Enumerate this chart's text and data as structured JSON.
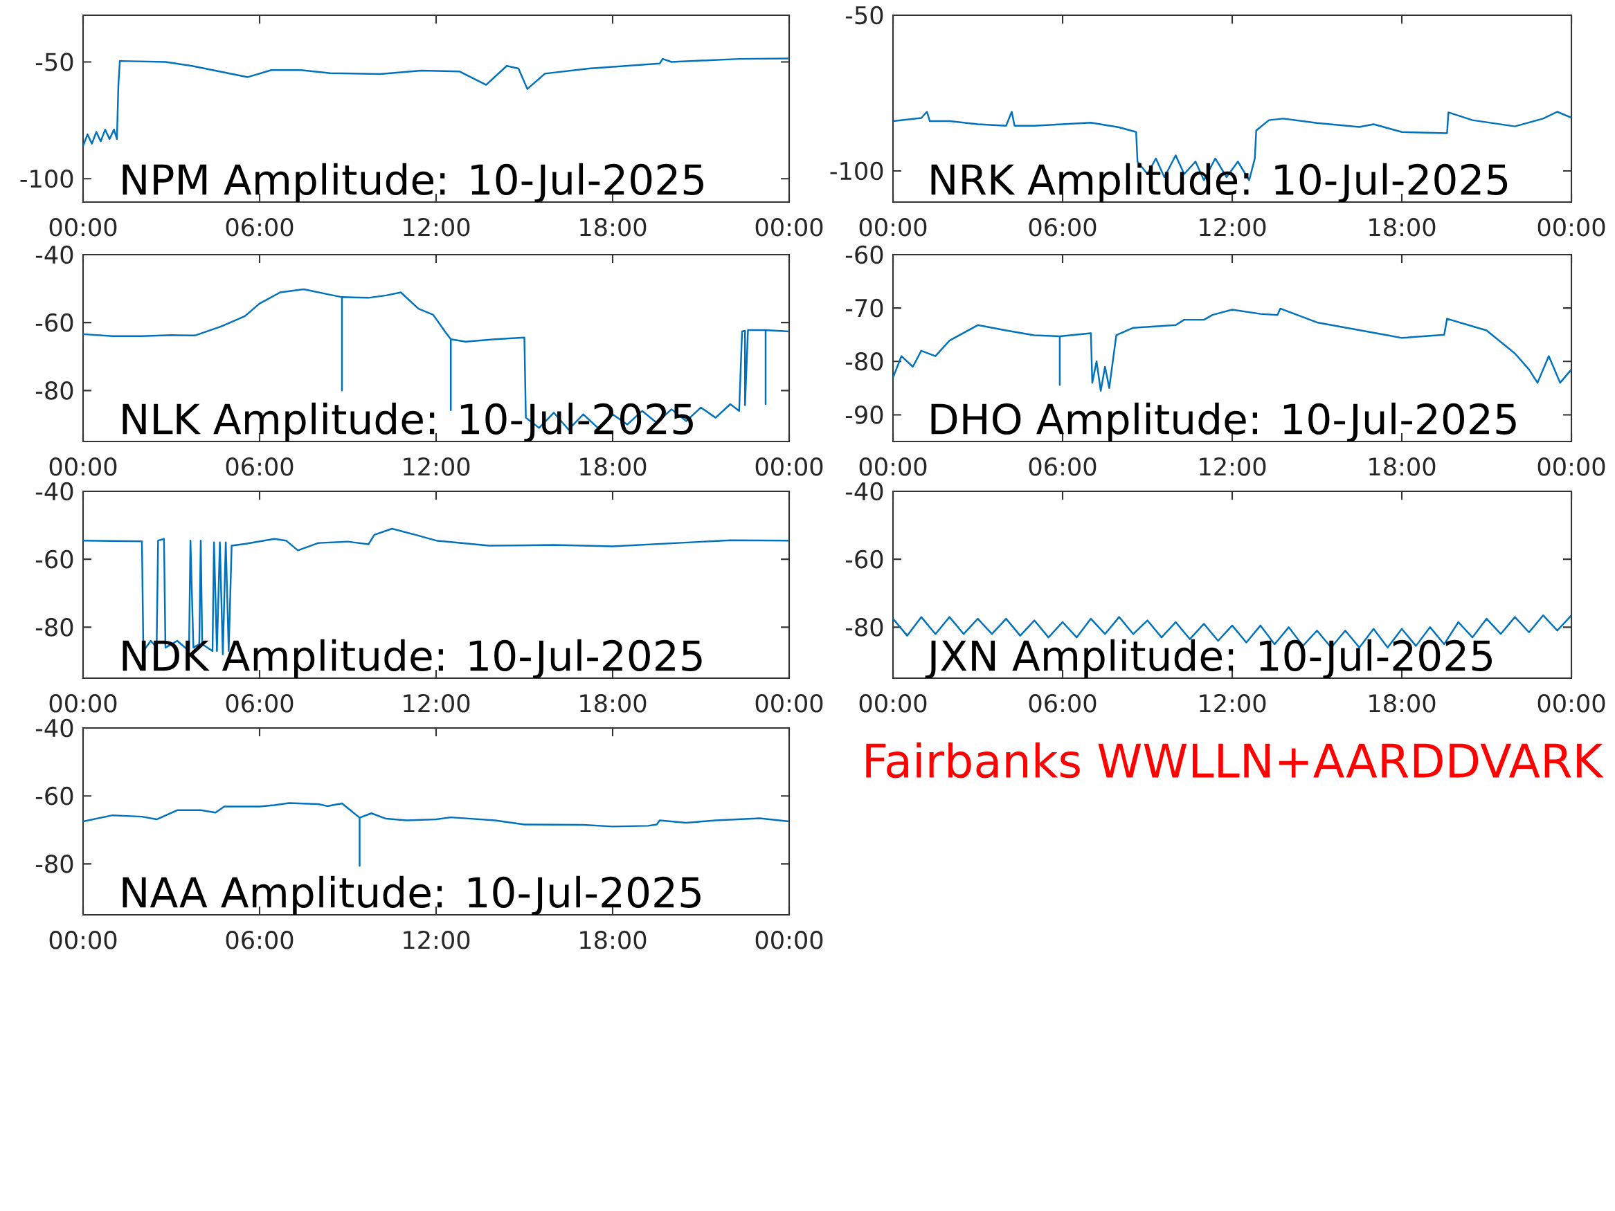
{
  "chart_data": [
    {
      "type": "line",
      "title": "NPM Amplitude: 10-Jul-2025",
      "color": "#0072bd",
      "xlim": [
        0,
        24
      ],
      "ylim": [
        -110,
        -30
      ],
      "yticks": [
        -50,
        -100
      ],
      "xticks": [
        {
          "value": 0,
          "label": "00:00"
        },
        {
          "value": 6,
          "label": "06:00"
        },
        {
          "value": 12,
          "label": "12:00"
        },
        {
          "value": 18,
          "label": "18:00"
        },
        {
          "value": 24,
          "label": "00:00"
        }
      ],
      "x": [
        0,
        0.15,
        0.3,
        0.45,
        0.6,
        0.75,
        0.9,
        1.05,
        1.15,
        1.2,
        1.25,
        2.8,
        3.7,
        5.6,
        6.4,
        7.4,
        8.4,
        10.1,
        11.5,
        12.8,
        13.7,
        14.4,
        14.8,
        15.1,
        15.7,
        17.2,
        19.6,
        19.7,
        20.0,
        22.3,
        24
      ],
      "values": [
        -86,
        -81,
        -85,
        -80,
        -84,
        -79,
        -83,
        -79,
        -83,
        -60,
        -49.6,
        -50,
        -51.7,
        -56.5,
        -53.5,
        -53.5,
        -54.8,
        -55.2,
        -53.7,
        -54.1,
        -59.8,
        -51.7,
        -52.8,
        -61.6,
        -55,
        -52.8,
        -50.7,
        -48.7,
        -50,
        -48.7,
        -48.5
      ]
    },
    {
      "type": "line",
      "title": "NRK Amplitude: 10-Jul-2025",
      "color": "#0072bd",
      "xlim": [
        0,
        24
      ],
      "ylim": [
        -110,
        -50
      ],
      "yticks": [
        -50,
        -100
      ],
      "xticks": [
        {
          "value": 0,
          "label": "00:00"
        },
        {
          "value": 6,
          "label": "06:00"
        },
        {
          "value": 12,
          "label": "12:00"
        },
        {
          "value": 18,
          "label": "18:00"
        },
        {
          "value": 24,
          "label": "00:00"
        }
      ],
      "x": [
        0,
        1,
        1.2,
        1.3,
        2,
        3,
        4,
        4.2,
        4.3,
        5,
        6,
        7,
        8,
        8.6,
        8.65,
        9,
        9.3,
        9.6,
        10,
        10.3,
        10.7,
        11,
        11.4,
        11.8,
        12.2,
        12.6,
        12.8,
        12.85,
        13.3,
        13.8,
        15,
        16.5,
        17,
        18,
        19.6,
        19.65,
        20.5,
        22,
        23,
        23.5,
        24
      ],
      "values": [
        -84,
        -83,
        -81,
        -84,
        -84,
        -85,
        -85.5,
        -81,
        -85.5,
        -85.5,
        -85,
        -84.5,
        -86,
        -87.5,
        -97,
        -101,
        -96,
        -102,
        -95,
        -101,
        -97,
        -103,
        -96,
        -102,
        -97,
        -103,
        -96,
        -87,
        -83.7,
        -83.2,
        -84.6,
        -85.9,
        -85,
        -87.5,
        -87.9,
        -81.2,
        -83.7,
        -85.7,
        -83.2,
        -81,
        -82.9
      ]
    },
    {
      "type": "line",
      "title": "NLK Amplitude: 10-Jul-2025",
      "color": "#0072bd",
      "xlim": [
        0,
        24
      ],
      "ylim": [
        -95,
        -40
      ],
      "yticks": [
        -40,
        -60,
        -80
      ],
      "xticks": [
        {
          "value": 0,
          "label": "00:00"
        },
        {
          "value": 6,
          "label": "06:00"
        },
        {
          "value": 12,
          "label": "12:00"
        },
        {
          "value": 18,
          "label": "18:00"
        },
        {
          "value": 24,
          "label": "00:00"
        }
      ],
      "x": [
        0,
        1,
        2,
        3,
        3.8,
        4.7,
        5.5,
        6,
        6.7,
        7.5,
        8.5,
        8.8,
        8.8,
        8.8,
        9.7,
        10.3,
        10.8,
        11.4,
        11.9,
        12.3,
        12.5,
        12.5,
        12.5,
        13,
        14,
        15,
        15.05,
        15.5,
        16,
        16.5,
        17,
        17.5,
        18,
        18.5,
        19,
        19.5,
        20,
        20.5,
        21,
        21.5,
        22,
        22.3,
        22.4,
        22.5,
        22.5,
        22.6,
        23.2,
        23.2,
        23.2,
        24
      ],
      "values": [
        -63.4,
        -64,
        -64,
        -63.7,
        -63.8,
        -61.1,
        -58.1,
        -54.4,
        -51.1,
        -50.2,
        -52,
        -52.5,
        -80,
        -52.5,
        -52.7,
        -52,
        -51.1,
        -55.9,
        -57.7,
        -62.6,
        -64.9,
        -85.8,
        -64.9,
        -65.6,
        -64.9,
        -64.4,
        -88,
        -91,
        -86.5,
        -91.5,
        -87,
        -91,
        -87,
        -90,
        -86,
        -89.5,
        -85.5,
        -89,
        -85,
        -88,
        -84,
        -86,
        -62.6,
        -62.4,
        -84.3,
        -62.2,
        -62.2,
        -84,
        -62.2,
        -62.6
      ]
    },
    {
      "type": "line",
      "title": "DHO Amplitude: 10-Jul-2025",
      "color": "#0072bd",
      "xlim": [
        0,
        24
      ],
      "ylim": [
        -95,
        -60
      ],
      "yticks": [
        -60,
        -70,
        -80,
        -90
      ],
      "xticks": [
        {
          "value": 0,
          "label": "00:00"
        },
        {
          "value": 6,
          "label": "06:00"
        },
        {
          "value": 12,
          "label": "12:00"
        },
        {
          "value": 18,
          "label": "18:00"
        },
        {
          "value": 24,
          "label": "00:00"
        }
      ],
      "x": [
        0,
        0.3,
        0.7,
        1,
        1.5,
        2,
        3,
        4,
        5,
        5.9,
        5.9,
        5.9,
        7,
        7.05,
        7.2,
        7.35,
        7.5,
        7.65,
        7.75,
        7.9,
        8.5,
        10,
        10.3,
        11,
        11.3,
        12,
        13,
        13.6,
        13.7,
        15,
        17.5,
        18,
        19.5,
        19.6,
        21,
        22,
        22.5,
        22.8,
        23.2,
        23.6,
        24
      ],
      "values": [
        -83,
        -79,
        -81,
        -78,
        -79,
        -76.1,
        -73.2,
        -74.2,
        -75.1,
        -75.3,
        -84.4,
        -75.3,
        -74.7,
        -84,
        -80,
        -85.5,
        -81,
        -85,
        -81,
        -75.1,
        -73.7,
        -73.2,
        -72.2,
        -72.2,
        -71.3,
        -70.3,
        -71.1,
        -71.3,
        -70.1,
        -72.7,
        -75.1,
        -75.6,
        -75,
        -72,
        -74.2,
        -78.5,
        -81.5,
        -84,
        -79,
        -84,
        -81.5
      ]
    },
    {
      "type": "line",
      "title": "NDK Amplitude: 10-Jul-2025",
      "color": "#0072bd",
      "xlim": [
        0,
        24
      ],
      "ylim": [
        -95,
        -40
      ],
      "yticks": [
        -40,
        -60,
        -80
      ],
      "xticks": [
        {
          "value": 0,
          "label": "00:00"
        },
        {
          "value": 6,
          "label": "06:00"
        },
        {
          "value": 12,
          "label": "12:00"
        },
        {
          "value": 18,
          "label": "18:00"
        },
        {
          "value": 24,
          "label": "00:00"
        }
      ],
      "x": [
        0,
        2,
        2.05,
        2.3,
        2.5,
        2.55,
        2.75,
        2.8,
        3.2,
        3.6,
        3.65,
        3.75,
        3.95,
        4.0,
        4.05,
        4.4,
        4.45,
        4.55,
        4.65,
        4.75,
        4.85,
        4.95,
        5.05,
        5.5,
        6.5,
        6.9,
        7.3,
        8,
        9,
        9.7,
        9.9,
        10.5,
        11.3,
        12,
        13.8,
        16,
        18,
        20,
        22,
        24
      ],
      "values": [
        -54.5,
        -54.7,
        -87,
        -84,
        -86,
        -54.5,
        -54,
        -86,
        -84,
        -87,
        -54.5,
        -86,
        -85,
        -54.5,
        -85,
        -87,
        -55,
        -87,
        -55,
        -88,
        -55,
        -87,
        -56,
        -55.5,
        -54,
        -54.5,
        -57.4,
        -55.2,
        -54.8,
        -55.6,
        -52.8,
        -51,
        -52.8,
        -54.5,
        -56,
        -55.8,
        -56.2,
        -55.3,
        -54.4,
        -54.5
      ]
    },
    {
      "type": "line",
      "title": "JXN Amplitude: 10-Jul-2025",
      "color": "#0072bd",
      "xlim": [
        0,
        24
      ],
      "ylim": [
        -95,
        -40
      ],
      "yticks": [
        -40,
        -60,
        -80
      ],
      "xticks": [
        {
          "value": 0,
          "label": "00:00"
        },
        {
          "value": 6,
          "label": "06:00"
        },
        {
          "value": 12,
          "label": "12:00"
        },
        {
          "value": 18,
          "label": "18:00"
        },
        {
          "value": 24,
          "label": "00:00"
        }
      ],
      "x": [
        0,
        0.5,
        1,
        1.5,
        2,
        2.5,
        3,
        3.5,
        4,
        4.5,
        5,
        5.5,
        6,
        6.5,
        7,
        7.5,
        8,
        8.5,
        9,
        9.5,
        10,
        10.5,
        11,
        11.5,
        12,
        12.5,
        13,
        13.5,
        14,
        14.5,
        15,
        15.5,
        16,
        16.5,
        17,
        17.5,
        18,
        18.5,
        19,
        19.5,
        20,
        20.5,
        21,
        21.5,
        22,
        22.5,
        23,
        23.5,
        24
      ],
      "values": [
        -77.5,
        -82.5,
        -77,
        -82,
        -77,
        -82,
        -77.5,
        -82,
        -77.5,
        -82.5,
        -78,
        -83,
        -78.5,
        -83,
        -77.5,
        -82,
        -77,
        -82,
        -78,
        -83,
        -78.5,
        -83.5,
        -79,
        -84,
        -79.5,
        -84.5,
        -79.5,
        -85,
        -80,
        -85.5,
        -81,
        -86,
        -81,
        -86,
        -80.5,
        -86,
        -80.5,
        -85.5,
        -80,
        -85,
        -78.5,
        -83,
        -77.5,
        -82,
        -77,
        -81.5,
        -76.5,
        -81,
        -76.5
      ]
    },
    {
      "type": "line",
      "title": "NAA Amplitude: 10-Jul-2025",
      "color": "#0072bd",
      "xlim": [
        0,
        24
      ],
      "ylim": [
        -95,
        -40
      ],
      "yticks": [
        -40,
        -60,
        -80
      ],
      "xticks": [
        {
          "value": 0,
          "label": "00:00"
        },
        {
          "value": 6,
          "label": "06:00"
        },
        {
          "value": 12,
          "label": "12:00"
        },
        {
          "value": 18,
          "label": "18:00"
        },
        {
          "value": 24,
          "label": "00:00"
        }
      ],
      "x": [
        0,
        1,
        2,
        2.5,
        3.2,
        4,
        4.5,
        4.8,
        6,
        6.5,
        7,
        8,
        8.3,
        8.8,
        9.4,
        9.4,
        9.4,
        9.8,
        10.3,
        11,
        12,
        12.5,
        14,
        15,
        17,
        18,
        19.2,
        19.5,
        19.6,
        20.5,
        21.5,
        23,
        24
      ],
      "values": [
        -67.5,
        -65.7,
        -66.1,
        -66.9,
        -64.2,
        -64.2,
        -64.9,
        -63.1,
        -63.1,
        -62.7,
        -62.1,
        -62.4,
        -63,
        -62.2,
        -66.4,
        -80.6,
        -66.4,
        -65.1,
        -66.7,
        -67.2,
        -66.9,
        -66.3,
        -67.2,
        -68.4,
        -68.5,
        -69,
        -68.8,
        -68.4,
        -67.2,
        -67.9,
        -67.2,
        -66.6,
        -67.5
      ]
    },
    {
      "type": "other",
      "annotations": [
        "Fairbanks WWLLN+AARDDVARK"
      ]
    }
  ]
}
